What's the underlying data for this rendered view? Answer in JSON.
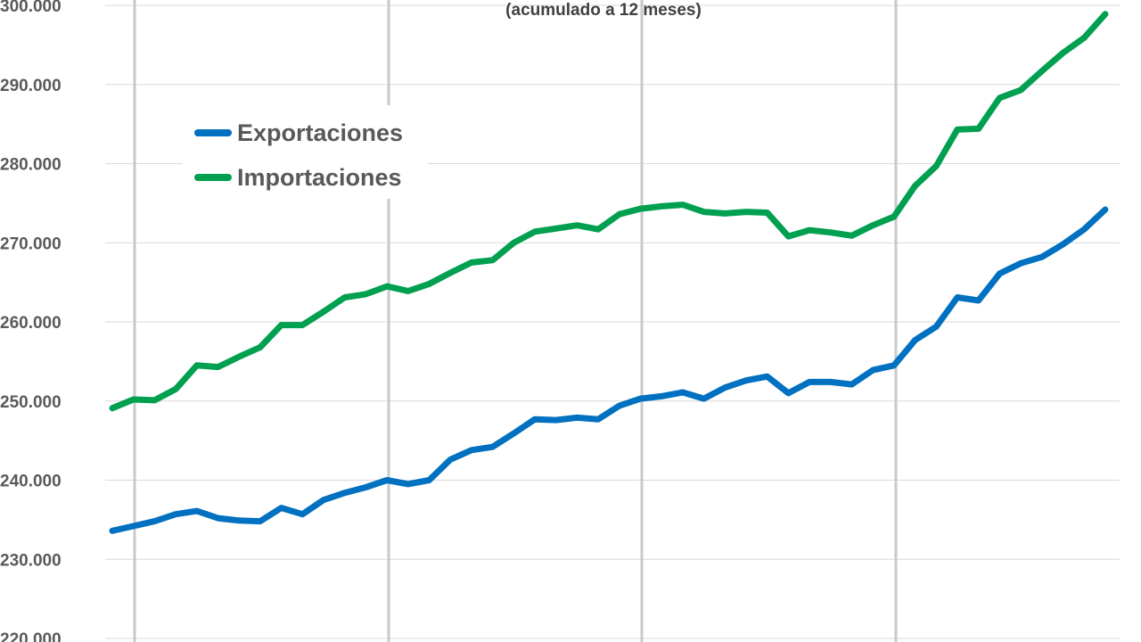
{
  "chart_data": {
    "type": "line",
    "subtitle": "(acumulado  a 12 meses)",
    "ylim": [
      220000,
      300000
    ],
    "yticks": [
      220000,
      230000,
      240000,
      250000,
      260000,
      270000,
      280000,
      290000,
      300000
    ],
    "ytick_labels": [
      "220.000",
      "230.000",
      "240.000",
      "250.000",
      "260.000",
      "270.000",
      "280.000",
      "290.000",
      "300.000"
    ],
    "grid": true,
    "legend_position": "top-left",
    "series": [
      {
        "name": "Exportaciones",
        "color": "#0070c0",
        "values": [
          233600,
          234200,
          234800,
          235700,
          236100,
          235200,
          234900,
          234800,
          236500,
          235700,
          237500,
          238400,
          239100,
          240000,
          239500,
          240000,
          242600,
          243800,
          244200,
          245900,
          247700,
          247600,
          247900,
          247700,
          249400,
          250300,
          250600,
          251100,
          250300,
          251700,
          252600,
          253100,
          251000,
          252400,
          252400,
          252100,
          253900,
          254500,
          257700,
          259400,
          263100,
          262700,
          266100,
          267400,
          268200,
          269800,
          271700,
          274200
        ]
      },
      {
        "name": "Importaciones",
        "color": "#00a050",
        "values": [
          249100,
          250200,
          250100,
          251500,
          254500,
          254300,
          255600,
          256800,
          259600,
          259600,
          261300,
          263100,
          263500,
          264500,
          263900,
          264800,
          266200,
          267500,
          267800,
          270000,
          271400,
          271800,
          272200,
          271700,
          273600,
          274300,
          274600,
          274800,
          273900,
          273700,
          273900,
          273800,
          270800,
          271600,
          271300,
          270900,
          272200,
          273300,
          277200,
          279700,
          284300,
          284400,
          288300,
          289300,
          291700,
          294000,
          295900,
          298900
        ]
      }
    ]
  }
}
